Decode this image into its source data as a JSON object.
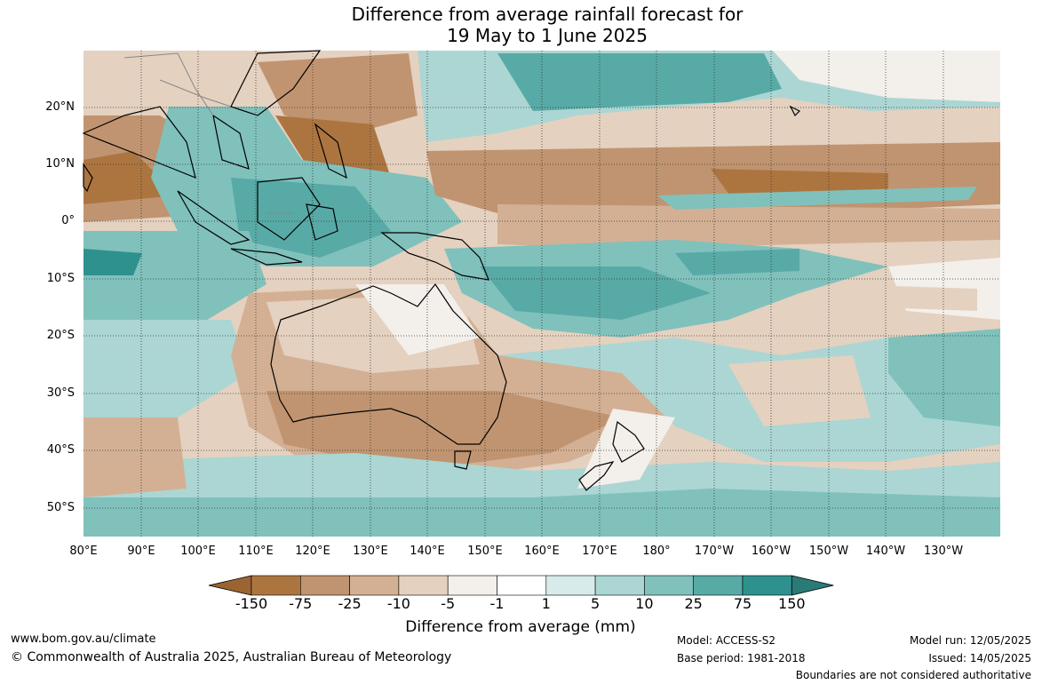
{
  "title": {
    "line1": "Difference from average rainfall forecast for",
    "line2": "19 May to 1 June 2025"
  },
  "map": {
    "lat_labels": [
      "20°N",
      "10°N",
      "0°",
      "10°S",
      "20°S",
      "30°S",
      "40°S",
      "50°S"
    ],
    "lon_labels": [
      "80°E",
      "90°E",
      "100°E",
      "110°E",
      "120°E",
      "130°E",
      "140°E",
      "150°E",
      "160°E",
      "170°E",
      "180°",
      "170°W",
      "160°W",
      "150°W",
      "140°W",
      "130°W"
    ]
  },
  "colorbar": {
    "labels": [
      "-150",
      "-75",
      "-25",
      "-10",
      "-5",
      "-1",
      "1",
      "5",
      "10",
      "25",
      "75",
      "150"
    ],
    "colors": [
      "#9b6432",
      "#ac7540",
      "#c09470",
      "#d3b094",
      "#e4d1c0",
      "#f3efea",
      "#ffffff",
      "#d7ecea",
      "#acd6d3",
      "#80c1bc",
      "#58aaa6",
      "#2e918d",
      "#2a7b77"
    ],
    "title": "Difference from average (mm)"
  },
  "footer": {
    "url": "www.bom.gov.au/climate",
    "copyright": "© Commonwealth of Australia 2025, Australian Bureau of Meteorology",
    "model": "Model: ACCESS-S2",
    "base_period": "Base period: 1981-2018",
    "model_run": "Model run: 12/05/2025",
    "issued": "Issued: 14/05/2025",
    "disclaimer": "Boundaries are not considered authoritative"
  }
}
